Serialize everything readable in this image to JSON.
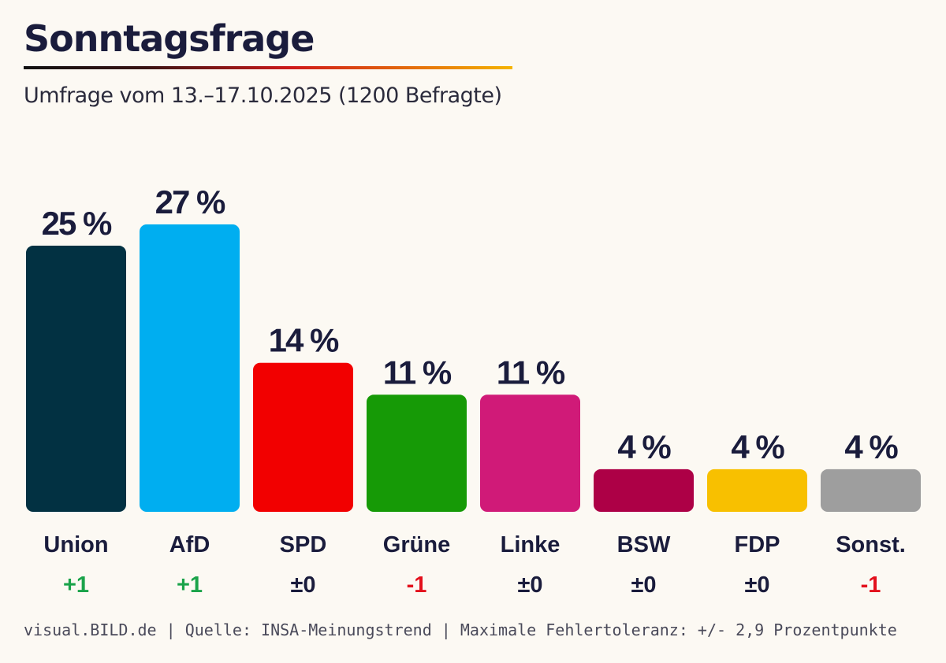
{
  "header": {
    "title": "Sonntagsfrage",
    "subtitle": "Umfrage vom 13.–17.10.2025 (1200 Befragte)"
  },
  "footer": {
    "text": "visual.BILD.de | Quelle: INSA-Meinungstrend | Maximale Fehlertoleranz: +/- 2,9 Prozentpunkte"
  },
  "colors": {
    "background": "#fcf9f3",
    "text": "#1a1c3c",
    "positive": "#1aa34a",
    "negative": "#e3101c",
    "neutral": "#1a1c3c"
  },
  "chart_data": {
    "type": "bar",
    "title": "Sonntagsfrage",
    "xlabel": "",
    "ylabel": "",
    "ylim": [
      0,
      27
    ],
    "unit": "%",
    "categories": [
      "Union",
      "AfD",
      "SPD",
      "Grüne",
      "Linke",
      "BSW",
      "FDP",
      "Sonst."
    ],
    "values": [
      25,
      27,
      14,
      11,
      11,
      4,
      4,
      4
    ],
    "value_labels": [
      "25 %",
      "27 %",
      "14 %",
      "11 %",
      "11 %",
      "4 %",
      "4 %",
      "4 %"
    ],
    "changes": [
      "+1",
      "+1",
      "±0",
      "-1",
      "±0",
      "±0",
      "±0",
      "-1"
    ],
    "change_direction": [
      "up",
      "up",
      "none",
      "down",
      "none",
      "none",
      "none",
      "down"
    ],
    "bar_colors": [
      "#023142",
      "#00aef0",
      "#f20000",
      "#169a06",
      "#d01a78",
      "#ad0046",
      "#f8c000",
      "#9e9e9e"
    ]
  }
}
